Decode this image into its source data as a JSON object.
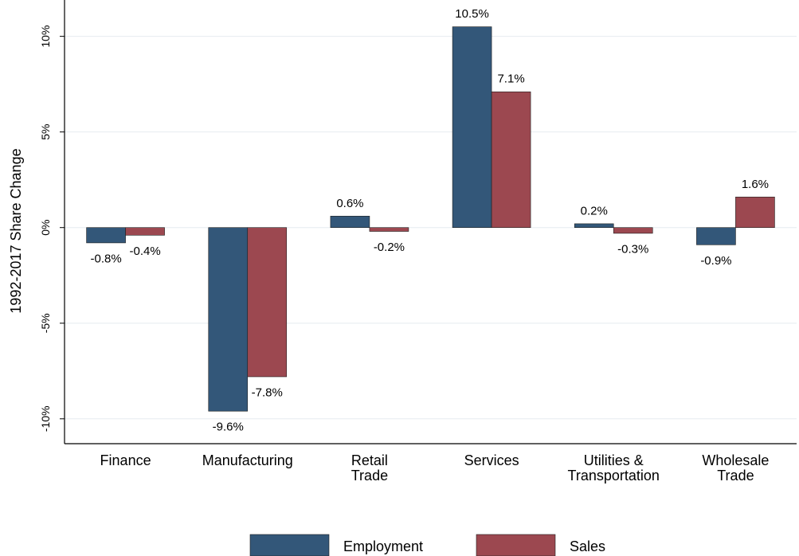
{
  "chart_data": {
    "type": "bar",
    "ylabel": "1992-2017  Share Change",
    "ylim": [
      -11.3,
      11.9
    ],
    "yticks": [
      -10,
      -5,
      0,
      5,
      10
    ],
    "ytick_labels": [
      "-10%",
      "-5%",
      "0%",
      "5%",
      "10%"
    ],
    "grid": true,
    "legend_position": "bottom",
    "categories": [
      [
        "Finance"
      ],
      [
        "Manufacturing"
      ],
      [
        "Retail",
        "Trade"
      ],
      [
        "Services"
      ],
      [
        "Utilities &",
        "Transportation"
      ],
      [
        "Wholesale",
        "Trade"
      ]
    ],
    "series": [
      {
        "name": "Employment",
        "color": "#335779",
        "values": [
          -0.8,
          -9.6,
          0.6,
          10.5,
          0.2,
          -0.9
        ],
        "labels": [
          "-0.8%",
          "-9.6%",
          "0.6%",
          "10.5%",
          "0.2%",
          "-0.9%"
        ]
      },
      {
        "name": "Sales",
        "color": "#9c4850",
        "values": [
          -0.4,
          -7.8,
          -0.2,
          7.1,
          -0.3,
          1.6
        ],
        "labels": [
          "-0.4%",
          "-7.8%",
          "-0.2%",
          "7.1%",
          "-0.3%",
          "1.6%"
        ]
      }
    ]
  }
}
